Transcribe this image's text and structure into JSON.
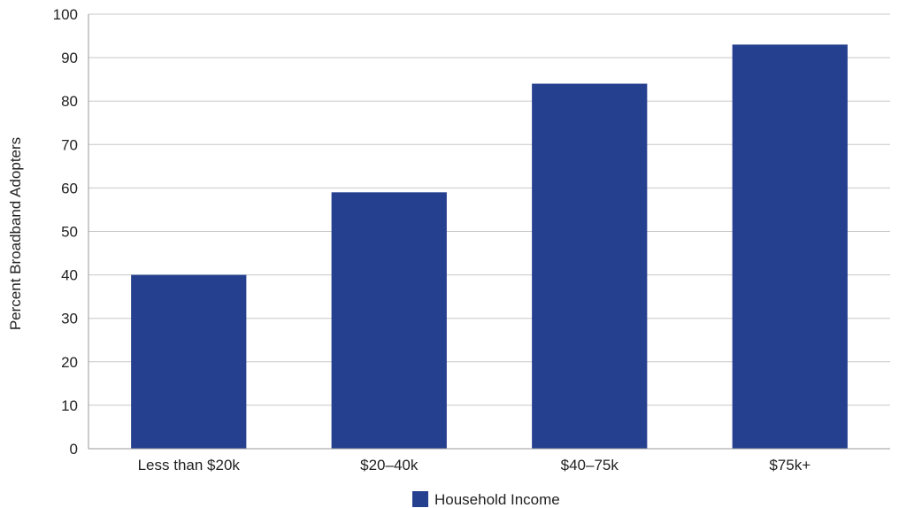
{
  "chart_data": {
    "type": "bar",
    "categories": [
      "Less than $20k",
      "$20–40k",
      "$40–75k",
      "$75k+"
    ],
    "series": [
      {
        "name": "Household Income",
        "values": [
          40,
          59,
          84,
          93
        ]
      }
    ],
    "title": "",
    "xlabel": "",
    "ylabel": "Percent Broadband Adopters",
    "ylim": [
      0,
      100
    ],
    "yticks": [
      0,
      10,
      20,
      30,
      40,
      50,
      60,
      70,
      80,
      90,
      100
    ],
    "grid": true,
    "legend_position": "bottom-center",
    "colors": {
      "bar": "#25408f",
      "grid": "#c8c8c8",
      "axis": "#9a9a9a"
    }
  }
}
